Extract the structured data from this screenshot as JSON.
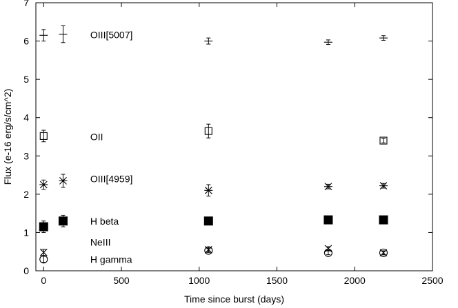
{
  "chart_data": {
    "type": "scatter",
    "title": "",
    "xlabel": "Time since burst (days)",
    "ylabel": "Flux (e-16 erg/s/cm^2)",
    "xlim": [
      -50,
      2500
    ],
    "ylim": [
      0,
      7
    ],
    "xticks": [
      0,
      500,
      1000,
      1500,
      2000,
      2500
    ],
    "yticks": [
      0,
      1,
      2,
      3,
      4,
      5,
      6,
      7
    ],
    "grid": false,
    "legend": "none",
    "series": [
      {
        "name": "OIII[5007]",
        "marker": "plus",
        "label_at": [
          300,
          6.16
        ],
        "points": [
          {
            "x": 0,
            "y": 6.15,
            "yerr": 0.15
          },
          {
            "x": 125,
            "y": 6.18,
            "yerr": 0.22
          },
          {
            "x": 1060,
            "y": 6.0,
            "yerr": 0.08
          },
          {
            "x": 1830,
            "y": 5.97,
            "yerr": 0.06
          },
          {
            "x": 2185,
            "y": 6.08,
            "yerr": 0.06
          }
        ]
      },
      {
        "name": "OII",
        "marker": "open-square",
        "label_at": [
          300,
          3.5
        ],
        "points": [
          {
            "x": 0,
            "y": 3.52,
            "yerr": 0.15
          },
          {
            "x": 1060,
            "y": 3.65,
            "yerr": 0.18
          },
          {
            "x": 2185,
            "y": 3.4,
            "yerr": 0.06
          }
        ]
      },
      {
        "name": "OIII[4959]",
        "marker": "asterisk",
        "label_at": [
          300,
          2.4
        ],
        "points": [
          {
            "x": 0,
            "y": 2.25,
            "yerr": 0.12
          },
          {
            "x": 125,
            "y": 2.35,
            "yerr": 0.17
          },
          {
            "x": 1060,
            "y": 2.1,
            "yerr": 0.15
          },
          {
            "x": 1830,
            "y": 2.2,
            "yerr": 0.06
          },
          {
            "x": 2185,
            "y": 2.22,
            "yerr": 0.06
          }
        ]
      },
      {
        "name": "H beta",
        "marker": "filled-square",
        "label_at": [
          300,
          1.3
        ],
        "points": [
          {
            "x": 0,
            "y": 1.15,
            "yerr": 0.15
          },
          {
            "x": 125,
            "y": 1.3,
            "yerr": 0.15
          },
          {
            "x": 1060,
            "y": 1.3,
            "yerr": 0.05
          },
          {
            "x": 1830,
            "y": 1.33,
            "yerr": 0.05
          },
          {
            "x": 2185,
            "y": 1.33,
            "yerr": 0.05
          }
        ]
      },
      {
        "name": "NeIII",
        "marker": "cross",
        "label_at": [
          300,
          0.75
        ],
        "points": [
          {
            "x": 0,
            "y": 0.48,
            "yerr": 0.08
          },
          {
            "x": 1060,
            "y": 0.55,
            "yerr": 0.06
          },
          {
            "x": 1830,
            "y": 0.58,
            "yerr": 0.05
          },
          {
            "x": 2185,
            "y": 0.47,
            "yerr": 0.05
          }
        ]
      },
      {
        "name": "H gamma",
        "marker": "open-circle",
        "label_at": [
          300,
          0.3
        ],
        "points": [
          {
            "x": 0,
            "y": 0.3,
            "yerr": 0.08
          },
          {
            "x": 1060,
            "y": 0.53,
            "yerr": 0.05
          },
          {
            "x": 1830,
            "y": 0.47,
            "yerr": 0.05
          },
          {
            "x": 2185,
            "y": 0.47,
            "yerr": 0.05
          }
        ]
      }
    ]
  }
}
